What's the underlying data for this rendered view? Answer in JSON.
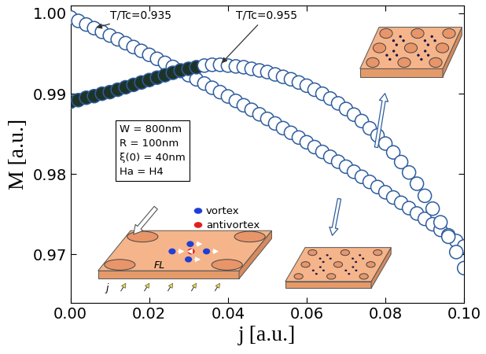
{
  "chart_data": {
    "type": "scatter",
    "x_label": "j [a.u.]",
    "y_label": "M [a.u.]",
    "xlim": [
      0,
      0.1
    ],
    "ylim": [
      0.964,
      1.001
    ],
    "xticks": [
      {
        "value": 0,
        "label": "0.00"
      },
      {
        "value": 0.02,
        "label": "0.02"
      },
      {
        "value": 0.04,
        "label": "0.04"
      },
      {
        "value": 0.06,
        "label": "0.06"
      },
      {
        "value": 0.08,
        "label": "0.08"
      },
      {
        "value": 0.1,
        "label": "0.10"
      }
    ],
    "yticks": [
      {
        "value": 0.97,
        "label": "0.97"
      },
      {
        "value": 0.98,
        "label": "0.98"
      },
      {
        "value": 0.99,
        "label": "0.99"
      },
      {
        "value": 1.0,
        "label": "1.00"
      }
    ],
    "grid": false,
    "parameters": [
      "W = 800nm",
      "R = 100nm",
      "ξ(0) = 40nm",
      "Ha = H4"
    ],
    "key": [
      {
        "label": "vortex",
        "color": "#1f3fd6"
      },
      {
        "label": "antivortex",
        "color": "#e0201c"
      }
    ],
    "inset_labels": [
      "FL",
      "j"
    ],
    "x": [
      0,
      0.002,
      0.004,
      0.006,
      0.008,
      0.01,
      0.012,
      0.014,
      0.016,
      0.018,
      0.02,
      0.022,
      0.024,
      0.026,
      0.028,
      0.03,
      0.032,
      0.034,
      0.036,
      0.038,
      0.04,
      0.042,
      0.044,
      0.046,
      0.048,
      0.05,
      0.052,
      0.054,
      0.056,
      0.058,
      0.06,
      0.062,
      0.064,
      0.066,
      0.068,
      0.07,
      0.072,
      0.074,
      0.076,
      0.078,
      0.08,
      0.082,
      0.084,
      0.086,
      0.088,
      0.09,
      0.092,
      0.094,
      0.096,
      0.098,
      0.1
    ],
    "series": [
      {
        "name": "T/Tc=0.935",
        "color": "#2e5d9e",
        "marker": "o",
        "values": [
          0.9995,
          0.99906,
          0.99861,
          0.99816,
          0.9977,
          0.99724,
          0.99677,
          0.99629,
          0.99581,
          0.99533,
          0.99484,
          0.99434,
          0.99384,
          0.99334,
          0.99283,
          0.99231,
          0.99179,
          0.99127,
          0.99074,
          0.9902,
          0.98966,
          0.98911,
          0.98856,
          0.988,
          0.98744,
          0.98687,
          0.9863,
          0.98572,
          0.98514,
          0.98455,
          0.98396,
          0.98336,
          0.98276,
          0.98215,
          0.98154,
          0.98092,
          0.98029,
          0.97966,
          0.97903,
          0.97839,
          0.97774,
          0.97709,
          0.97643,
          0.97577,
          0.9751,
          0.97443,
          0.97376,
          0.97306,
          0.97238,
          0.97168,
          0.971
        ]
      },
      {
        "name": "T/Tc=0.955",
        "color": "#2e5d9e",
        "marker": "o",
        "colors": [
          "#1e3328",
          "#1e3328",
          "#1e3328",
          "#1e3328",
          "#1e3328",
          "#1e3328",
          "#1e3328",
          "#1e3328",
          "#1e3328",
          "#1e3328",
          "#1e3328",
          "#1e3328",
          "#1e3328",
          "#1e3328",
          "#1e3328",
          "#1e3328",
          "#1e3328",
          "#ffffff",
          "#ffffff",
          "#ffffff",
          "#ffffff",
          "#ffffff",
          "#ffffff",
          "#ffffff",
          "#ffffff",
          "#ffffff",
          "#ffffff",
          "#ffffff",
          "#ffffff",
          "#ffffff",
          "#ffffff",
          "#ffffff",
          "#ffffff",
          "#ffffff",
          "#ffffff",
          "#ffffff",
          "#ffffff",
          "#ffffff",
          "#ffffff",
          "#ffffff",
          "#ffffff",
          "#ffffff",
          "#ffffff",
          "#ffffff",
          "#ffffff",
          "#ffffff",
          "#ffffff",
          "#ffffff",
          "#ffffff",
          "#ffffff",
          "#ffffff"
        ],
        "values": [
          0.989,
          0.9892,
          0.9895,
          0.9897,
          0.99,
          0.9902,
          0.9905,
          0.9908,
          0.9911,
          0.9914,
          0.9917,
          0.992,
          0.9923,
          0.9926,
          0.9929,
          0.9931,
          0.9933,
          0.9935,
          0.9936,
          0.9936,
          0.9935,
          0.9934,
          0.9933,
          0.9931,
          0.9929,
          0.9927,
          0.9924,
          0.9921,
          0.9918,
          0.9914,
          0.991,
          0.9905,
          0.99,
          0.9894,
          0.9888,
          0.9881,
          0.9874,
          0.9866,
          0.9857,
          0.9848,
          0.9838,
          0.9827,
          0.9815,
          0.9802,
          0.9788,
          0.9773,
          0.9757,
          0.974,
          0.9722,
          0.9703,
          0.9683
        ]
      }
    ]
  }
}
